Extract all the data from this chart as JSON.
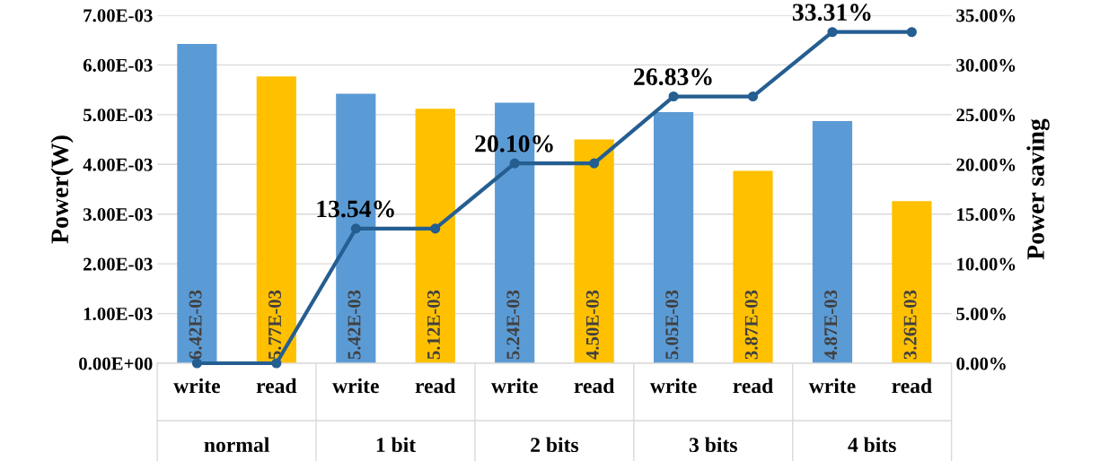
{
  "chart_data": {
    "type": "bar",
    "categories": [
      "write",
      "read",
      "write",
      "read",
      "write",
      "read",
      "write",
      "read",
      "write",
      "read"
    ],
    "annotations": [
      "normal",
      "1 bit",
      "2 bits",
      "3 bits",
      "4 bits"
    ],
    "ylabel": "Power(W)",
    "y2label": "Power saving",
    "ylim": [
      0,
      0.007
    ],
    "yticks": [
      {
        "value": 0,
        "label": "0.00E+00"
      },
      {
        "value": 0.001,
        "label": "1.00E-03"
      },
      {
        "value": 0.002,
        "label": "2.00E-03"
      },
      {
        "value": 0.003,
        "label": "3.00E-03"
      },
      {
        "value": 0.004,
        "label": "4.00E-03"
      },
      {
        "value": 0.005,
        "label": "5.00E-03"
      },
      {
        "value": 0.006,
        "label": "6.00E-03"
      },
      {
        "value": 0.007,
        "label": "7.00E-03"
      }
    ],
    "y2lim": [
      0,
      35
    ],
    "y2ticks": [
      {
        "value": 0,
        "label": "0.00%"
      },
      {
        "value": 5,
        "label": "5.00%"
      },
      {
        "value": 10,
        "label": "10.00%"
      },
      {
        "value": 15,
        "label": "15.00%"
      },
      {
        "value": 20,
        "label": "20.00%"
      },
      {
        "value": 25,
        "label": "25.00%"
      },
      {
        "value": 30,
        "label": "30.00%"
      },
      {
        "value": 35,
        "label": "35.00%"
      }
    ],
    "grid": "y",
    "series": [
      {
        "values": [
          0.00642,
          0.00577,
          0.00542,
          0.00512,
          0.00524,
          0.0045,
          0.00505,
          0.00387,
          0.00487,
          0.00326
        ],
        "colors": [
          "#5b9bd5",
          "#ffc000",
          "#5b9bd5",
          "#ffc000",
          "#5b9bd5",
          "#ffc000",
          "#5b9bd5",
          "#ffc000",
          "#5b9bd5",
          "#ffc000"
        ],
        "value_labels": [
          "6.42E-03",
          "5.77E-03",
          "5.42E-03",
          "5.12E-03",
          "5.24E-03",
          "4.50E-03",
          "5.05E-03",
          "3.87E-03",
          "4.87E-03",
          "3.26E-03"
        ]
      },
      {
        "type": "line",
        "axis": "y2",
        "color": "#255e91",
        "marker": "circle",
        "line_style": "solid",
        "values": [
          0,
          0,
          13.54,
          13.54,
          20.1,
          20.1,
          26.83,
          26.83,
          33.31,
          33.31
        ],
        "value_labels": [
          null,
          null,
          "13.54%",
          null,
          "20.10%",
          null,
          "26.83%",
          null,
          "33.31%",
          null
        ]
      }
    ]
  }
}
